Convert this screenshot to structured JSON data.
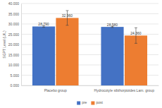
{
  "chart_data": {
    "type": "bar",
    "categories": [
      "Placebo group",
      "Hydrocotyle sibthorpioides Lam. group"
    ],
    "series": [
      {
        "name": "pre",
        "color": "#4472c4",
        "values": [
          28.79,
          28.58
        ],
        "value_labels": [
          "28.790",
          "28.580"
        ],
        "errors": [
          0.4,
          0.3
        ]
      },
      {
        "name": "post",
        "color": "#ed7d31",
        "values": [
          32.96,
          24.36
        ],
        "value_labels": [
          "32.960",
          "24.360"
        ],
        "errors": [
          3.6,
          3.8
        ]
      }
    ],
    "y_label": "SGPT Level (U/L)",
    "ylim": [
      0,
      40
    ],
    "yticks": [
      {
        "value": 0,
        "label": "0.000"
      },
      {
        "value": 5,
        "label": "5.000"
      },
      {
        "value": 10,
        "label": "10.000"
      },
      {
        "value": 15,
        "label": "15.000"
      },
      {
        "value": 20,
        "label": "20.000"
      },
      {
        "value": 25,
        "label": "25.000"
      },
      {
        "value": 30,
        "label": "30.000"
      },
      {
        "value": 35,
        "label": "35.000"
      },
      {
        "value": 40,
        "label": "40.000"
      }
    ],
    "grid": true,
    "data_labels": true,
    "legend": "bottom"
  }
}
